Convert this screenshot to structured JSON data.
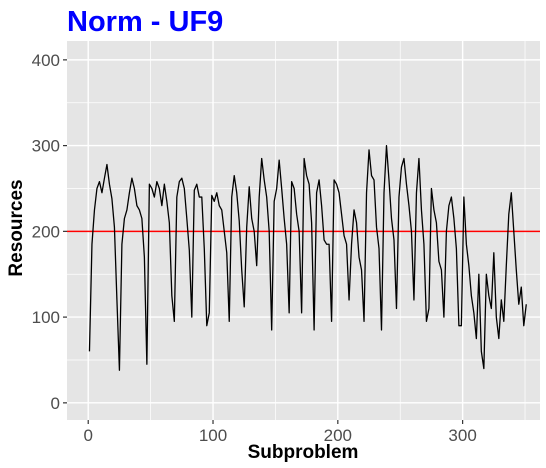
{
  "chart_data": {
    "type": "line",
    "title": "Norm - UF9",
    "title_color": "#0000ff",
    "xlabel": "Subproblem",
    "ylabel": "Resources",
    "xlim": [
      -17,
      362
    ],
    "ylim": [
      -20,
      422
    ],
    "x_ticks": [
      0,
      100,
      200,
      300
    ],
    "x_tick_labels": [
      "0",
      "100",
      "200",
      "300"
    ],
    "y_ticks": [
      0,
      100,
      200,
      300,
      400
    ],
    "y_tick_labels": [
      "0",
      "100",
      "200",
      "300",
      "400"
    ],
    "grid": true,
    "panel_color": "#e5e5e5",
    "grid_color": "#ffffff",
    "series": [
      {
        "color": "#000000",
        "x": [
          1,
          3,
          5,
          7,
          9,
          11,
          13,
          15,
          17,
          19,
          21,
          23,
          25,
          27,
          29,
          31,
          33,
          35,
          37,
          39,
          41,
          43,
          45,
          47,
          49,
          51,
          53,
          55,
          57,
          59,
          61,
          63,
          65,
          67,
          69,
          71,
          73,
          75,
          77,
          79,
          81,
          83,
          85,
          87,
          89,
          91,
          93,
          95,
          97,
          99,
          101,
          103,
          105,
          107,
          109,
          111,
          113,
          115,
          117,
          119,
          121,
          123,
          125,
          127,
          129,
          131,
          133,
          135,
          137,
          139,
          141,
          143,
          145,
          147,
          149,
          151,
          153,
          155,
          157,
          159,
          161,
          163,
          165,
          167,
          169,
          171,
          173,
          175,
          177,
          179,
          181,
          183,
          185,
          187,
          189,
          191,
          193,
          195,
          197,
          199,
          201,
          203,
          205,
          207,
          209,
          211,
          213,
          215,
          217,
          219,
          221,
          223,
          225,
          227,
          229,
          231,
          233,
          235,
          237,
          239,
          241,
          243,
          245,
          247,
          249,
          251,
          253,
          255,
          257,
          259,
          261,
          263,
          265,
          267,
          269,
          271,
          273,
          275,
          277,
          279,
          281,
          283,
          285,
          287,
          289,
          291,
          293,
          295,
          297,
          299,
          301,
          303,
          305,
          307,
          309,
          311,
          313,
          315,
          317,
          319,
          321,
          323,
          325,
          327,
          329,
          331,
          333,
          335,
          337,
          339,
          341,
          343,
          345,
          347,
          349,
          351
        ],
        "y": [
          60,
          185,
          225,
          250,
          258,
          245,
          262,
          278,
          255,
          238,
          205,
          120,
          38,
          185,
          215,
          225,
          245,
          262,
          250,
          230,
          225,
          215,
          170,
          45,
          255,
          250,
          240,
          258,
          250,
          230,
          255,
          235,
          210,
          125,
          95,
          240,
          258,
          262,
          250,
          215,
          178,
          100,
          248,
          255,
          240,
          240,
          180,
          90,
          105,
          242,
          235,
          245,
          230,
          225,
          200,
          175,
          95,
          240,
          265,
          245,
          212,
          155,
          112,
          205,
          252,
          215,
          200,
          160,
          240,
          285,
          260,
          240,
          200,
          85,
          235,
          250,
          283,
          250,
          215,
          185,
          105,
          258,
          250,
          220,
          200,
          105,
          285,
          265,
          255,
          210,
          85,
          245,
          260,
          230,
          190,
          185,
          185,
          95,
          260,
          255,
          245,
          220,
          195,
          185,
          120,
          185,
          225,
          210,
          170,
          155,
          95,
          245,
          295,
          265,
          260,
          205,
          180,
          85,
          245,
          300,
          260,
          215,
          190,
          110,
          240,
          275,
          285,
          255,
          230,
          200,
          120,
          245,
          285,
          225,
          185,
          95,
          110,
          250,
          225,
          210,
          165,
          155,
          100,
          200,
          230,
          240,
          215,
          180,
          90,
          90,
          240,
          185,
          160,
          125,
          105,
          75,
          150,
          60,
          40,
          150,
          125,
          110,
          175,
          100,
          75,
          120,
          95,
          160,
          220,
          245,
          200,
          155,
          115,
          135,
          90,
          115
        ]
      }
    ],
    "reference_line": {
      "axis": "y",
      "value": 200,
      "color": "#ff0000"
    }
  }
}
